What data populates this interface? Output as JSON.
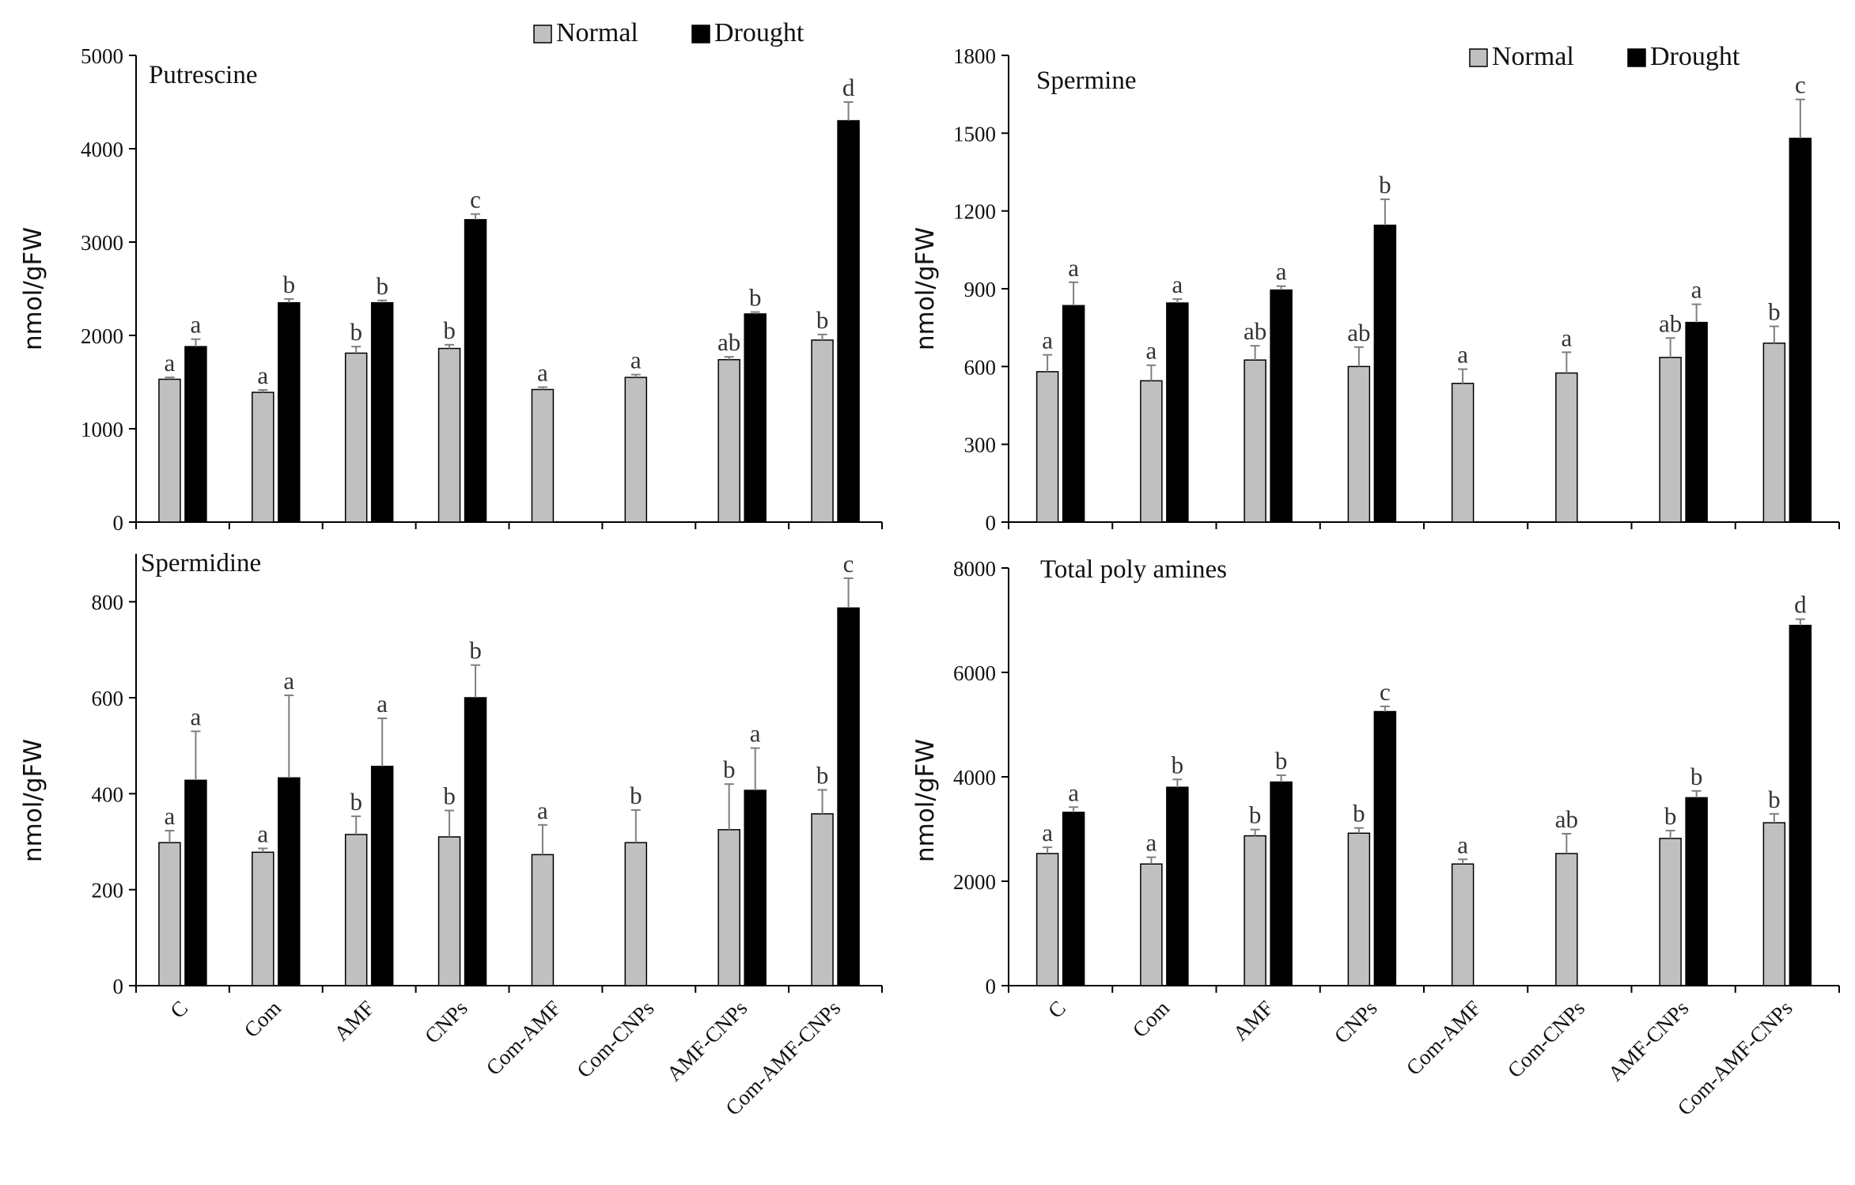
{
  "legend": {
    "labels": [
      "Normal",
      "Drought"
    ]
  },
  "colors": {
    "normal": "#c0c0c0",
    "drought": "#000000",
    "error_bar": "#7f7f7f",
    "axis": "#000000"
  },
  "chart_data": [
    {
      "type": "bar",
      "title": "Putrescine",
      "ylabel": "nmol/gFW",
      "xlabel": "",
      "ylim": [
        0,
        5000
      ],
      "yticks": [
        "0",
        "1000",
        "2000",
        "3000",
        "4000",
        "5000"
      ],
      "categories": [
        "C",
        "Com",
        "AMF",
        "CNPs",
        "Com-AMF",
        "Com-CNPs",
        "AMF-CNPs",
        "Com-AMF-CNPs"
      ],
      "show_category_labels": false,
      "legend_shown": true,
      "grid": false,
      "series": [
        {
          "name": "Normal",
          "values": [
            1530,
            1390,
            1810,
            1860,
            1420,
            1550,
            1740,
            1950
          ],
          "errors": [
            20,
            25,
            70,
            40,
            25,
            30,
            30,
            60
          ],
          "letters": [
            "a",
            "a",
            "b",
            "b",
            "a",
            "a",
            "ab",
            "b"
          ]
        },
        {
          "name": "Drought",
          "values": [
            1880,
            2350,
            2350,
            3240,
            null,
            null,
            2230,
            4300
          ],
          "errors": [
            80,
            40,
            25,
            60,
            null,
            null,
            20,
            200
          ],
          "letters": [
            "a",
            "b",
            "b",
            "c",
            "",
            "",
            "b",
            "d"
          ]
        }
      ]
    },
    {
      "type": "bar",
      "title": "Spermine",
      "ylabel": "nmol/gFW",
      "xlabel": "",
      "ylim": [
        0,
        1800
      ],
      "yticks": [
        "0",
        "300",
        "600",
        "900",
        "1200",
        "1500",
        "1800"
      ],
      "categories": [
        "C",
        "Com",
        "AMF",
        "CNPs",
        "Com-AMF",
        "Com-CNPs",
        "AMF-CNPs",
        "Com-AMF-CNPs"
      ],
      "show_category_labels": false,
      "legend_shown": true,
      "grid": false,
      "series": [
        {
          "name": "Normal",
          "values": [
            580,
            545,
            625,
            600,
            535,
            575,
            635,
            690
          ],
          "errors": [
            65,
            60,
            55,
            75,
            55,
            80,
            75,
            65
          ],
          "letters": [
            "a",
            "a",
            "ab",
            "ab",
            "a",
            "a",
            "ab",
            "b"
          ]
        },
        {
          "name": "Drought",
          "values": [
            835,
            845,
            895,
            1145,
            null,
            null,
            770,
            1480
          ],
          "errors": [
            90,
            15,
            15,
            100,
            null,
            null,
            70,
            150
          ],
          "letters": [
            "a",
            "a",
            "a",
            "b",
            "",
            "",
            "a",
            "c"
          ]
        }
      ]
    },
    {
      "type": "bar",
      "title": "Spermidine",
      "ylabel": "nmol/gFW",
      "xlabel": "",
      "ylim": [
        0,
        900
      ],
      "yticks": [
        "0",
        "200",
        "400",
        "600",
        "800"
      ],
      "categories": [
        "C",
        "Com",
        "AMF",
        "CNPs",
        "Com-AMF",
        "Com-CNPs",
        "AMF-CNPs",
        "Com-AMF-CNPs"
      ],
      "show_category_labels": true,
      "legend_shown": false,
      "grid": false,
      "series": [
        {
          "name": "Normal",
          "values": [
            298,
            278,
            315,
            310,
            273,
            298,
            325,
            358
          ],
          "errors": [
            25,
            8,
            38,
            55,
            62,
            68,
            95,
            50
          ],
          "letters": [
            "a",
            "a",
            "b",
            "b",
            "a",
            "b",
            "b",
            "b"
          ]
        },
        {
          "name": "Drought",
          "values": [
            428,
            433,
            457,
            600,
            null,
            null,
            407,
            787
          ],
          "errors": [
            102,
            172,
            100,
            68,
            null,
            null,
            88,
            62
          ],
          "letters": [
            "a",
            "a",
            "a",
            "b",
            "",
            "",
            "a",
            "c"
          ]
        }
      ]
    },
    {
      "type": "bar",
      "title": "Total poly amines",
      "ylabel": "nmol/gFW",
      "xlabel": "",
      "ylim": [
        0,
        8000
      ],
      "yticks": [
        "0",
        "2000",
        "4000",
        "6000",
        "8000"
      ],
      "categories": [
        "C",
        "Com",
        "AMF",
        "CNPs",
        "Com-AMF",
        "Com-CNPs",
        "AMF-CNPs",
        "Com-AMF-CNPs"
      ],
      "show_category_labels": true,
      "legend_shown": false,
      "grid": false,
      "series": [
        {
          "name": "Normal",
          "values": [
            2530,
            2330,
            2870,
            2920,
            2330,
            2530,
            2820,
            3120
          ],
          "errors": [
            120,
            130,
            120,
            100,
            90,
            380,
            150,
            170
          ],
          "letters": [
            "a",
            "a",
            "b",
            "b",
            "a",
            "ab",
            "b",
            "b"
          ]
        },
        {
          "name": "Drought",
          "values": [
            3320,
            3800,
            3900,
            5250,
            null,
            null,
            3600,
            6900
          ],
          "errors": [
            100,
            150,
            130,
            100,
            null,
            null,
            130,
            120
          ],
          "letters": [
            "a",
            "b",
            "b",
            "c",
            "",
            "",
            "b",
            "d"
          ]
        }
      ]
    }
  ]
}
